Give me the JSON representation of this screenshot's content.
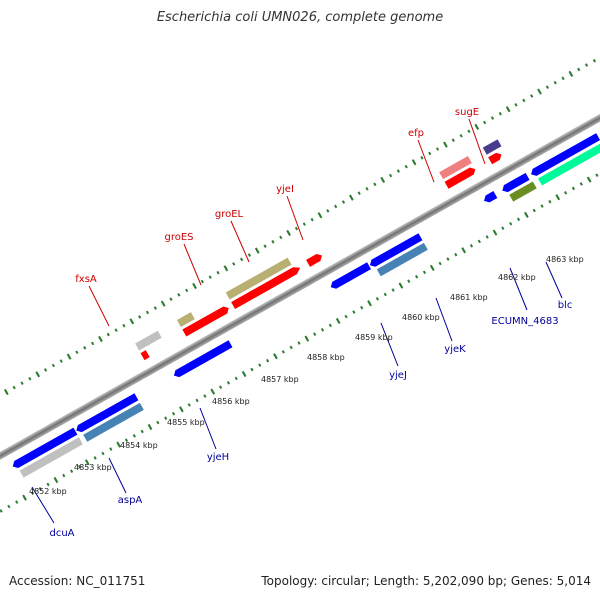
{
  "title": "Escherichia coli UMN026, complete genome",
  "footer": {
    "accession": "Accession: NC_011751",
    "topology": "Topology: circular; Length: 5,202,090 bp; Genes: 5,014"
  },
  "colors": {
    "forward_label": "#cc0000",
    "reverse_label": "#000099",
    "backbone": "#808080",
    "ticks": "#2e7d32"
  },
  "scale_labels": [
    "4852 kbp",
    "4853 kbp",
    "4854 kbp",
    "4855 kbp",
    "4856 kbp",
    "4857 kbp",
    "4858 kbp",
    "4859 kbp",
    "4860 kbp",
    "4861 kbp",
    "4862 kbp",
    "4863 kbp"
  ],
  "forward_gene_labels": [
    "fxsA",
    "groES",
    "groEL",
    "yjeI",
    "efp",
    "sugE"
  ],
  "reverse_gene_labels": [
    "dcuA",
    "aspA",
    "yjeH",
    "yjeJ",
    "yjeK",
    "ECUMN_4683",
    "blc"
  ]
}
